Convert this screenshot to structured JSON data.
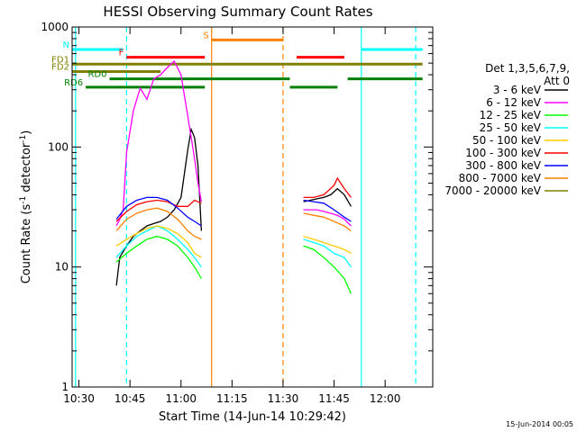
{
  "chart_data": {
    "type": "line",
    "title": "HESSI Observing Summary Count Rates",
    "xlabel": "Start Time (14-Jun-14 10:29:42)",
    "ylabel": "Count Rate (s⁻¹ detector⁻¹)",
    "ylabel_main": "Count Rate (s",
    "ylabel_sup1": "-1",
    "ylabel_mid": " detector",
    "ylabel_sup2": "-1",
    "ylabel_end": ")",
    "y_scale": "log",
    "ylim": [
      1,
      1000
    ],
    "xlim": [
      "10:28",
      "12:14"
    ],
    "xticks": [
      "10:30",
      "10:45",
      "11:00",
      "11:15",
      "11:30",
      "11:45",
      "12:00"
    ],
    "yticks": [
      "1",
      "10",
      "100",
      "1000"
    ],
    "legend_title": [
      "Det 1,3,5,6,7,9,",
      "Att 0"
    ],
    "legend_position": "right",
    "footer_date": "15-Jun-2014 00:05",
    "series": [
      {
        "name": "3 - 6 keV",
        "color": "#000000",
        "segments": [
          [
            [
              "10:41",
              7
            ],
            [
              "10:42",
              12
            ],
            [
              "10:44",
              15
            ],
            [
              "10:46",
              18
            ],
            [
              "10:48",
              20
            ],
            [
              "10:50",
              22
            ],
            [
              "10:52",
              23
            ],
            [
              "10:54",
              24
            ],
            [
              "10:56",
              26
            ],
            [
              "10:58",
              30
            ],
            [
              "11:00",
              38
            ],
            [
              "11:02",
              95
            ],
            [
              "11:03",
              140
            ],
            [
              "11:04",
              120
            ],
            [
              "11:05",
              70
            ],
            [
              "11:06",
              20
            ]
          ],
          [
            [
              "11:36",
              35
            ],
            [
              "11:38",
              36
            ],
            [
              "11:40",
              37
            ],
            [
              "11:42",
              38
            ],
            [
              "11:44",
              40
            ],
            [
              "11:46",
              45
            ],
            [
              "11:48",
              40
            ],
            [
              "11:50",
              32
            ]
          ]
        ]
      },
      {
        "name": "6 - 12 keV",
        "color": "#ff00ff",
        "segments": [
          [
            [
              "10:41",
              22
            ],
            [
              "10:42",
              25
            ],
            [
              "10:43",
              30
            ],
            [
              "10:44",
              90
            ],
            [
              "10:46",
              200
            ],
            [
              "10:48",
              310
            ],
            [
              "10:50",
              250
            ],
            [
              "10:52",
              370
            ],
            [
              "10:54",
              400
            ],
            [
              "10:56",
              460
            ],
            [
              "10:58",
              520
            ],
            [
              "11:00",
              400
            ],
            [
              "11:02",
              180
            ],
            [
              "11:03",
              120
            ],
            [
              "11:04",
              80
            ],
            [
              "11:05",
              50
            ],
            [
              "11:06",
              35
            ]
          ],
          [
            [
              "11:36",
              30
            ],
            [
              "11:38",
              30
            ],
            [
              "11:40",
              30
            ],
            [
              "11:42",
              29
            ],
            [
              "11:44",
              28
            ],
            [
              "11:46",
              27
            ],
            [
              "11:48",
              25
            ],
            [
              "11:50",
              22
            ]
          ]
        ]
      },
      {
        "name": "12 - 25 keV",
        "color": "#00ff00",
        "segments": [
          [
            [
              "10:41",
              11
            ],
            [
              "10:44",
              13
            ],
            [
              "10:47",
              15
            ],
            [
              "10:50",
              17
            ],
            [
              "10:53",
              18
            ],
            [
              "10:56",
              17
            ],
            [
              "10:59",
              15
            ],
            [
              "11:02",
              12
            ],
            [
              "11:04",
              10
            ],
            [
              "11:06",
              8
            ]
          ],
          [
            [
              "11:36",
              15
            ],
            [
              "11:39",
              14
            ],
            [
              "11:42",
              12
            ],
            [
              "11:45",
              10
            ],
            [
              "11:48",
              8
            ],
            [
              "11:50",
              6
            ]
          ]
        ]
      },
      {
        "name": "25 - 50 keV",
        "color": "#00ffff",
        "segments": [
          [
            [
              "10:41",
              12
            ],
            [
              "10:44",
              15
            ],
            [
              "10:47",
              18
            ],
            [
              "10:50",
              20
            ],
            [
              "10:53",
              22
            ],
            [
              "10:56",
              20
            ],
            [
              "10:59",
              17
            ],
            [
              "11:02",
              14
            ],
            [
              "11:04",
              12
            ],
            [
              "11:06",
              10
            ]
          ],
          [
            [
              "11:36",
              17
            ],
            [
              "11:39",
              16
            ],
            [
              "11:42",
              15
            ],
            [
              "11:45",
              13
            ],
            [
              "11:48",
              12
            ],
            [
              "11:50",
              10
            ]
          ]
        ]
      },
      {
        "name": "50 - 100 keV",
        "color": "#ffcc00",
        "segments": [
          [
            [
              "10:41",
              15
            ],
            [
              "10:44",
              17
            ],
            [
              "10:47",
              19
            ],
            [
              "10:50",
              21
            ],
            [
              "10:53",
              22
            ],
            [
              "10:56",
              21
            ],
            [
              "10:59",
              19
            ],
            [
              "11:02",
              16
            ],
            [
              "11:04",
              13
            ],
            [
              "11:06",
              12
            ]
          ],
          [
            [
              "11:36",
              18
            ],
            [
              "11:39",
              17
            ],
            [
              "11:42",
              16
            ],
            [
              "11:45",
              15
            ],
            [
              "11:48",
              14
            ],
            [
              "11:50",
              13
            ]
          ]
        ]
      },
      {
        "name": "100 - 300 keV",
        "color": "#ff0000",
        "segments": [
          [
            [
              "10:41",
              24
            ],
            [
              "10:44",
              29
            ],
            [
              "10:47",
              33
            ],
            [
              "10:50",
              35
            ],
            [
              "10:53",
              36
            ],
            [
              "10:56",
              35
            ],
            [
              "10:59",
              32
            ],
            [
              "11:02",
              32
            ],
            [
              "11:04",
              36
            ],
            [
              "11:06",
              34
            ]
          ],
          [
            [
              "11:36",
              38
            ],
            [
              "11:39",
              38
            ],
            [
              "11:42",
              40
            ],
            [
              "11:45",
              48
            ],
            [
              "11:46",
              55
            ],
            [
              "11:48",
              45
            ],
            [
              "11:50",
              38
            ]
          ]
        ]
      },
      {
        "name": "300 - 800 keV",
        "color": "#0000ff",
        "segments": [
          [
            [
              "10:41",
              25
            ],
            [
              "10:44",
              32
            ],
            [
              "10:47",
              36
            ],
            [
              "10:50",
              38
            ],
            [
              "10:53",
              38
            ],
            [
              "10:56",
              36
            ],
            [
              "10:59",
              31
            ],
            [
              "11:02",
              26
            ],
            [
              "11:04",
              24
            ],
            [
              "11:06",
              22
            ]
          ],
          [
            [
              "11:36",
              36
            ],
            [
              "11:39",
              35
            ],
            [
              "11:42",
              34
            ],
            [
              "11:45",
              30
            ],
            [
              "11:48",
              26
            ],
            [
              "11:50",
              24
            ]
          ]
        ]
      },
      {
        "name": "800 - 7000 keV",
        "color": "#ff8000",
        "segments": [
          [
            [
              "10:41",
              20
            ],
            [
              "10:44",
              25
            ],
            [
              "10:47",
              28
            ],
            [
              "10:50",
              30
            ],
            [
              "10:53",
              31
            ],
            [
              "10:56",
              29
            ],
            [
              "10:59",
              25
            ],
            [
              "11:02",
              20
            ],
            [
              "11:04",
              18
            ],
            [
              "11:06",
              17
            ]
          ],
          [
            [
              "11:36",
              28
            ],
            [
              "11:39",
              27
            ],
            [
              "11:42",
              26
            ],
            [
              "11:45",
              24
            ],
            [
              "11:48",
              22
            ],
            [
              "11:50",
              20
            ]
          ]
        ]
      },
      {
        "name": "7000 - 20000 keV",
        "color": "#808000",
        "segments": []
      }
    ],
    "flag_bars": [
      {
        "label": "N",
        "color": "#00ffff",
        "segments": [
          [
            "10:28",
            "10:43"
          ],
          [
            "11:53",
            "12:11"
          ]
        ],
        "value": 650
      },
      {
        "label": "S",
        "color": "#ff8000",
        "segments": [
          [
            "11:09",
            "11:30"
          ]
        ],
        "value": 780
      },
      {
        "label": "F",
        "color": "#ff0000",
        "segments": [
          [
            "10:44",
            "11:07"
          ],
          [
            "11:34",
            "11:48"
          ]
        ],
        "value": 560
      },
      {
        "label": "FD1",
        "color": "#808000",
        "segments": [
          [
            "10:28",
            "12:11"
          ]
        ],
        "value": 490
      },
      {
        "label": "FD2",
        "color": "#808000",
        "segments": [
          [
            "10:28",
            "10:54"
          ]
        ],
        "value": 425
      },
      {
        "label": "RD0",
        "color": "#008000",
        "segments": [
          [
            "10:39",
            "11:32"
          ],
          [
            "11:49",
            "12:11"
          ]
        ],
        "value": 370
      },
      {
        "label": "RD6",
        "color": "#008000",
        "segments": [
          [
            "10:32",
            "11:07"
          ],
          [
            "11:32",
            "11:46"
          ]
        ],
        "value": 315
      }
    ],
    "vlines": [
      {
        "x": "10:29",
        "color": "#00ffff",
        "style": "solid"
      },
      {
        "x": "10:44",
        "color": "#00ffff",
        "style": "dashed"
      },
      {
        "x": "11:09",
        "color": "#ff8000",
        "style": "solid"
      },
      {
        "x": "11:30",
        "color": "#ff8000",
        "style": "dashed"
      },
      {
        "x": "11:53",
        "color": "#00ffff",
        "style": "solid"
      },
      {
        "x": "12:09",
        "color": "#00ffff",
        "style": "dashed"
      }
    ]
  }
}
